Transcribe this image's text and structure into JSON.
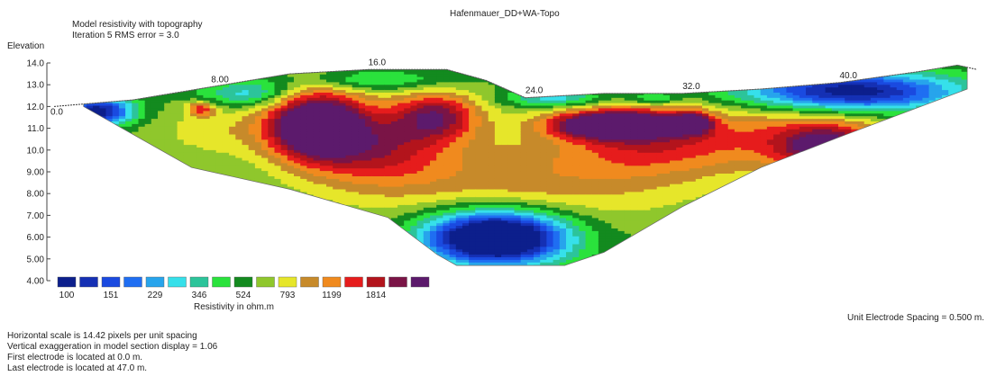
{
  "header": {
    "title": "Hafenmauer_DD+WA-Topo",
    "line1": "Model resistivity with topography",
    "line2": "Iteration 5 RMS error = 3.0"
  },
  "chart_data": {
    "type": "heatmap",
    "ylabel": "Elevation",
    "y_ticks": [
      "14.0",
      "13.0",
      "12.0",
      "11.0",
      "10.0",
      "9.00",
      "8.00",
      "7.00",
      "6.00",
      "5.00",
      "4.00"
    ],
    "x_ticks": [
      "0.0",
      "8.00",
      "16.0",
      "24.0",
      "32.0",
      "40.0"
    ],
    "x_range": [
      0,
      47
    ],
    "y_range": [
      4,
      14
    ],
    "topography": [
      [
        0,
        12.0
      ],
      [
        4,
        12.3
      ],
      [
        8,
        12.9
      ],
      [
        12,
        13.5
      ],
      [
        16,
        13.7
      ],
      [
        20,
        13.7
      ],
      [
        22,
        13.2
      ],
      [
        24,
        12.4
      ],
      [
        28,
        12.6
      ],
      [
        32,
        12.6
      ],
      [
        36,
        12.8
      ],
      [
        40,
        13.1
      ],
      [
        44,
        13.6
      ],
      [
        46,
        13.9
      ],
      [
        47,
        13.7
      ]
    ],
    "section_bottom": [
      [
        1.5,
        12.0
      ],
      [
        7,
        9.2
      ],
      [
        12,
        8.2
      ],
      [
        17,
        6.9
      ],
      [
        19.5,
        5.2
      ],
      [
        20.5,
        4.7
      ],
      [
        26,
        4.7
      ],
      [
        28,
        5.3
      ],
      [
        32,
        7.4
      ],
      [
        36,
        9.2
      ],
      [
        40,
        10.6
      ],
      [
        46.5,
        12.8
      ]
    ],
    "legend": {
      "title": "Resistivity in ohm.m",
      "labels": [
        "100",
        "151",
        "229",
        "346",
        "524",
        "793",
        "1199",
        "1814"
      ],
      "colors": [
        "#0c1f8c",
        "#1530b4",
        "#1a4ae0",
        "#1f6ef2",
        "#27a4ec",
        "#36e0ea",
        "#2cc49a",
        "#2ae23c",
        "#138a1f",
        "#8fc72c",
        "#e6e62a",
        "#c78a2a",
        "#f08a1e",
        "#e61c1c",
        "#b3141c",
        "#7a1446",
        "#5c1a6c"
      ]
    },
    "scale_text": "Unit Electrode Spacing = 0.500 m."
  },
  "footer": {
    "lines": [
      "Horizontal scale is 14.42 pixels per unit spacing",
      "Vertical exaggeration in model section display = 1.06",
      "First electrode is located at 0.0  m.",
      "Last electrode is located at 47.0 m."
    ]
  }
}
